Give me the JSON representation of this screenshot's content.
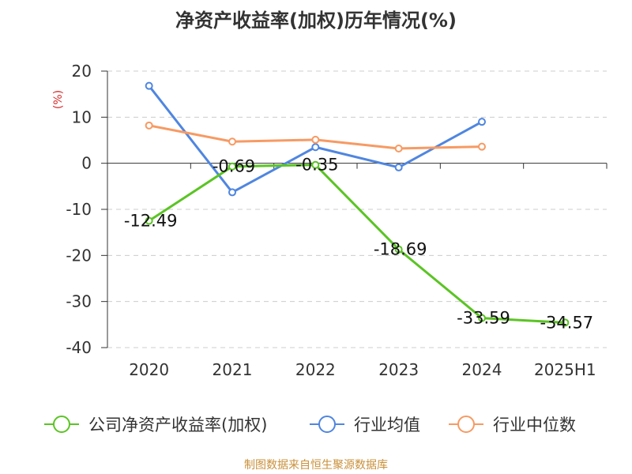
{
  "title": "净资产收益率(加权)历年情况(%)",
  "source": "制图数据来自恒生聚源数据库",
  "chart_data": {
    "type": "line",
    "title": "净资产收益率(加权)历年情况(%)",
    "ylabel": "(%)",
    "categories": [
      "2020",
      "2021",
      "2022",
      "2023",
      "2024",
      "2025H1"
    ],
    "ylim": [
      -40,
      20
    ],
    "yticks": [
      20,
      10,
      0,
      -10,
      -20,
      -30,
      -40
    ],
    "grid": true,
    "legend_position": "bottom",
    "series": [
      {
        "name": "公司净资产收益率(加权)",
        "color": "#5bc424",
        "values": [
          -12.49,
          -0.69,
          -0.35,
          -18.69,
          -33.59,
          -34.57
        ],
        "labels": [
          "-12.49",
          "-0.69",
          "-0.35",
          "-18.69",
          "-33.59",
          "-34.57"
        ]
      },
      {
        "name": "行业均值",
        "color": "#4f86e0",
        "values": [
          16.8,
          -6.3,
          3.5,
          -0.9,
          9.0,
          null
        ]
      },
      {
        "name": "行业中位数",
        "color": "#f79a63",
        "values": [
          8.2,
          4.7,
          5.1,
          3.2,
          3.6,
          null
        ]
      }
    ]
  }
}
